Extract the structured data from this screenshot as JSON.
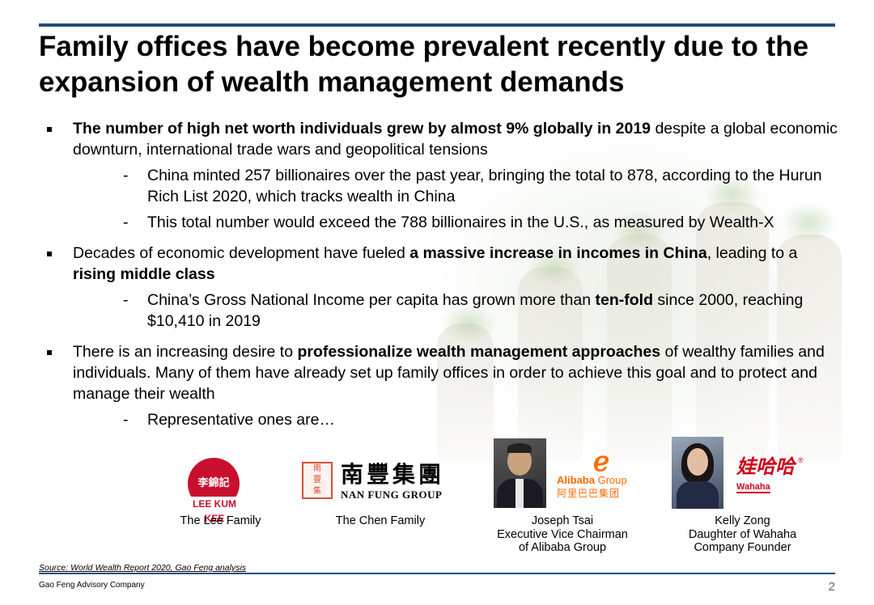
{
  "title": "Family offices have become prevalent recently due to the expansion of wealth management demands",
  "bullets": [
    {
      "segments": [
        {
          "text": "The number of high net worth individuals grew by almost 9% globally in 2019",
          "bold": true
        },
        {
          "text": " despite a global economic downturn, international trade wars and geopolitical tensions",
          "bold": false
        }
      ],
      "subs": [
        [
          {
            "text": "China minted 257 billionaires over the past year, bringing the total to 878, according to the Hurun Rich List 2020, which tracks wealth in China",
            "bold": false
          }
        ],
        [
          {
            "text": "This total number would exceed the 788 billionaires in the U.S., as measured by Wealth-X",
            "bold": false
          }
        ]
      ]
    },
    {
      "segments": [
        {
          "text": "Decades of economic development have fueled ",
          "bold": false
        },
        {
          "text": "a massive increase in incomes in China",
          "bold": true
        },
        {
          "text": ", leading to a ",
          "bold": false
        },
        {
          "text": "rising middle class",
          "bold": true
        }
      ],
      "subs": [
        [
          {
            "text": "China’s Gross National Income per capita has grown more than ",
            "bold": false
          },
          {
            "text": "ten-fold",
            "bold": true
          },
          {
            "text": " since 2000, reaching $10,410 in 2019",
            "bold": false
          }
        ]
      ]
    },
    {
      "segments": [
        {
          "text": "There is an increasing desire to ",
          "bold": false
        },
        {
          "text": "professionalize wealth management approaches",
          "bold": true
        },
        {
          "text": " of wealthy families and individuals. Many of them have already set up family offices in order to achieve this goal and to protect and manage their wealth",
          "bold": false
        }
      ],
      "subs": [
        [
          {
            "text": "Representative ones are…",
            "bold": false
          }
        ]
      ]
    }
  ],
  "logos": {
    "lee_kum_kee": {
      "cn": "李錦記",
      "en": "LEE KUM KEE"
    },
    "nan_fung": {
      "cn": "南豐集團",
      "en": "NAN FUNG GROUP"
    },
    "alibaba": {
      "mark": "ℯ",
      "name_bold": "Alibaba",
      "name_light": " Group",
      "cn": "阿里巴巴集团"
    },
    "wahaha": {
      "cn": "娃哈哈",
      "en": "Wahaha",
      "reg": "®"
    }
  },
  "captions": {
    "lee": "The Lee Family",
    "chen": "The Chen Family",
    "tsai": "Joseph Tsai\nExecutive Vice Chairman\nof Alibaba Group",
    "zong": "Kelly Zong\nDaughter of Wahaha\nCompany Founder"
  },
  "source_label": "Source:",
  "source_text": " World Wealth Report 2020, Gao Feng analysis",
  "footer": "Gao Feng Advisory Company",
  "page_number": "2",
  "colors": {
    "accent": "#1f4e79",
    "lkk_red": "#c8102e",
    "alibaba_orange": "#ff6a00",
    "wahaha_red": "#d0021b"
  }
}
